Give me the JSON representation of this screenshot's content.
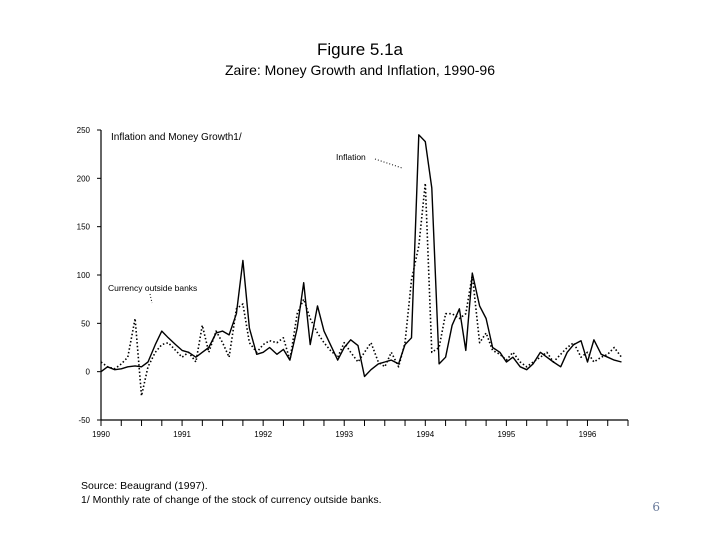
{
  "slide": {
    "figure_label": "Figure 5.1a",
    "subtitle": "Zaire: Money Growth and Inflation, 1990-96",
    "source_note": "Source: Beaugrand (1997).",
    "footnote": "1/  Monthly rate of change of the stock of currency outside banks.",
    "page_number": "6"
  },
  "chart_data": {
    "type": "line",
    "title": "Inflation and Money Growth1/",
    "x_tick_labels": [
      "1990",
      "1991",
      "1992",
      "1993",
      "1994",
      "1995",
      "1996"
    ],
    "ylim": [
      -50,
      250
    ],
    "y_ticks": [
      250,
      200,
      150,
      100,
      50,
      0,
      -50
    ],
    "annotations": [
      "Inflation",
      "Currency outside banks"
    ],
    "series": [
      {
        "name": "Currency outside banks",
        "style": "solid",
        "x": [
          1990.0,
          1990.08,
          1990.17,
          1990.25,
          1990.33,
          1990.42,
          1990.5,
          1990.58,
          1990.67,
          1990.75,
          1990.83,
          1990.92,
          1991.0,
          1991.08,
          1991.17,
          1991.25,
          1991.33,
          1991.42,
          1991.5,
          1991.58,
          1991.67,
          1991.75,
          1991.83,
          1991.92,
          1992.0,
          1992.08,
          1992.17,
          1992.25,
          1992.33,
          1992.42,
          1992.5,
          1992.58,
          1992.67,
          1992.75,
          1992.83,
          1992.92,
          1993.0,
          1993.08,
          1993.17,
          1993.25,
          1993.33,
          1993.42,
          1993.5,
          1993.58,
          1993.67,
          1993.75,
          1993.83,
          1993.92,
          1994.0,
          1994.08,
          1994.17,
          1994.25,
          1994.33,
          1994.42,
          1994.5,
          1994.58,
          1994.67,
          1994.75,
          1994.83,
          1994.92,
          1995.0,
          1995.08,
          1995.17,
          1995.25,
          1995.33,
          1995.42,
          1995.5,
          1995.58,
          1995.67,
          1995.75,
          1995.83,
          1995.92,
          1996.0,
          1996.08,
          1996.17,
          1996.25,
          1996.33,
          1996.42
        ],
        "values": [
          0,
          5,
          2,
          3,
          5,
          6,
          5,
          10,
          28,
          42,
          35,
          28,
          22,
          20,
          15,
          20,
          25,
          40,
          42,
          38,
          60,
          115,
          45,
          18,
          20,
          25,
          18,
          23,
          12,
          45,
          92,
          28,
          68,
          42,
          28,
          12,
          25,
          33,
          27,
          -5,
          2,
          8,
          10,
          12,
          8,
          28,
          35,
          245,
          238,
          190,
          8,
          15,
          48,
          65,
          22,
          102,
          68,
          55,
          25,
          20,
          10,
          15,
          5,
          2,
          8,
          20,
          15,
          10,
          5,
          20,
          28,
          32,
          10,
          33,
          18,
          15,
          12,
          10
        ]
      },
      {
        "name": "Inflation",
        "style": "dotted",
        "x": [
          1990.0,
          1990.08,
          1990.17,
          1990.25,
          1990.33,
          1990.42,
          1990.5,
          1990.58,
          1990.67,
          1990.75,
          1990.83,
          1990.92,
          1991.0,
          1991.08,
          1991.17,
          1991.25,
          1991.33,
          1991.42,
          1991.5,
          1991.58,
          1991.67,
          1991.75,
          1991.83,
          1991.92,
          1992.0,
          1992.08,
          1992.17,
          1992.25,
          1992.33,
          1992.42,
          1992.5,
          1992.58,
          1992.67,
          1992.75,
          1992.83,
          1992.92,
          1993.0,
          1993.08,
          1993.17,
          1993.25,
          1993.33,
          1993.42,
          1993.5,
          1993.58,
          1993.67,
          1993.75,
          1993.83,
          1993.92,
          1994.0,
          1994.08,
          1994.17,
          1994.25,
          1994.33,
          1994.42,
          1994.5,
          1994.58,
          1994.67,
          1994.75,
          1994.83,
          1994.92,
          1995.0,
          1995.08,
          1995.17,
          1995.25,
          1995.33,
          1995.42,
          1995.5,
          1995.58,
          1995.67,
          1995.75,
          1995.83,
          1995.92,
          1996.0,
          1996.08,
          1996.17,
          1996.25,
          1996.33,
          1996.42
        ],
        "values": [
          10,
          5,
          3,
          8,
          15,
          55,
          -25,
          5,
          20,
          28,
          30,
          22,
          15,
          20,
          10,
          48,
          20,
          42,
          30,
          15,
          65,
          70,
          30,
          20,
          28,
          32,
          30,
          35,
          12,
          60,
          75,
          55,
          40,
          30,
          22,
          15,
          30,
          20,
          10,
          20,
          30,
          10,
          5,
          20,
          5,
          30,
          95,
          130,
          195,
          20,
          25,
          60,
          60,
          55,
          60,
          100,
          30,
          40,
          22,
          18,
          12,
          20,
          10,
          5,
          10,
          15,
          20,
          10,
          18,
          25,
          30,
          15,
          20,
          10,
          15,
          18,
          25,
          15
        ]
      }
    ]
  }
}
